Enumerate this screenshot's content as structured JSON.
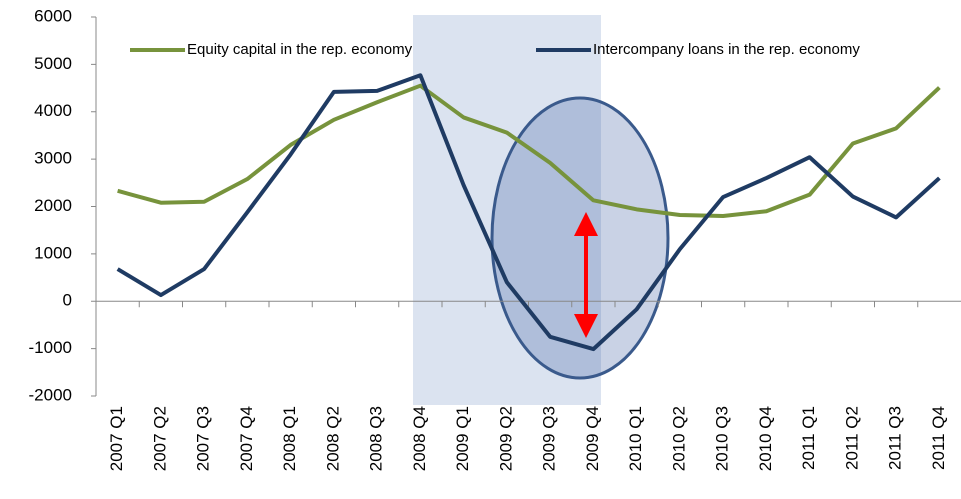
{
  "chart_data": {
    "type": "line",
    "categories": [
      "2007 Q1",
      "2007 Q2",
      "2007 Q3",
      "2007 Q4",
      "2008 Q1",
      "2008 Q2",
      "2008 Q3",
      "2008 Q4",
      "2009 Q1",
      "2009 Q2",
      "2009 Q3",
      "2009 Q4",
      "2010 Q1",
      "2010 Q2",
      "2010 Q3",
      "2010 Q4",
      "2011 Q1",
      "2011 Q2",
      "2011 Q3",
      "2011 Q4"
    ],
    "series": [
      {
        "name": "Equity capital in the rep. economy",
        "color": "#77933c",
        "values": [
          2330,
          2080,
          2100,
          2580,
          3300,
          3830,
          4200,
          4550,
          3880,
          3560,
          2920,
          2130,
          1940,
          1820,
          1800,
          1900,
          2250,
          3330,
          3650,
          4510
        ]
      },
      {
        "name": "Intercompany loans in the rep. economy",
        "color": "#1f3b63",
        "values": [
          680,
          130,
          680,
          1880,
          3100,
          4420,
          4440,
          4770,
          2450,
          400,
          -750,
          -1010,
          -170,
          1100,
          2200,
          2600,
          3040,
          2210,
          1770,
          2600
        ]
      }
    ],
    "ylim": [
      -2000,
      6000
    ],
    "yticks": [
      -2000,
      -1000,
      0,
      1000,
      2000,
      3000,
      4000,
      5000,
      6000
    ],
    "legend": "top",
    "grid": false
  }
}
